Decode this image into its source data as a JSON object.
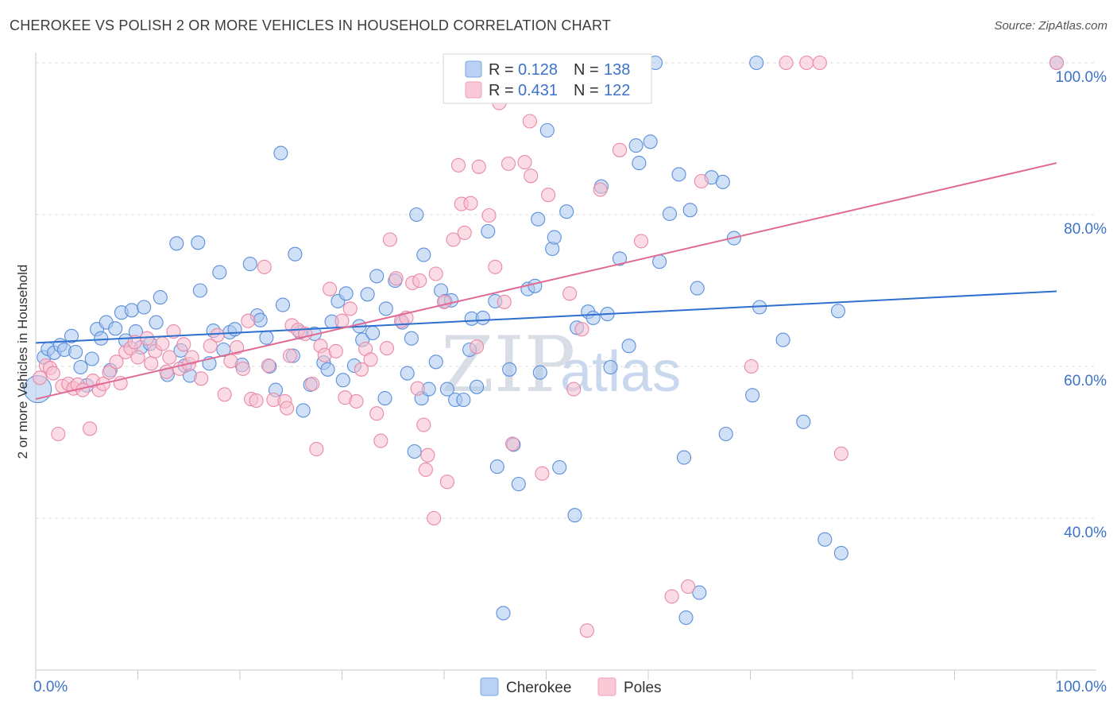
{
  "header": {
    "title": "CHEROKEE VS POLISH 2 OR MORE VEHICLES IN HOUSEHOLD CORRELATION CHART",
    "source": "Source: ZipAtlas.com"
  },
  "watermark": {
    "zip": "ZIP",
    "atlas": "atlas"
  },
  "legend_box": {
    "rows": [
      {
        "r_label": "R =",
        "r_value": "0.128",
        "n_label": "N =",
        "n_value": "138",
        "color": "#7aa6e6"
      },
      {
        "r_label": "R =",
        "r_value": "0.431",
        "n_label": "N =",
        "n_value": "122",
        "color": "#f0a0b8"
      }
    ]
  },
  "colors": {
    "cherokee_fill": "#a9c6ef",
    "cherokee_stroke": "#5b8fd9",
    "cherokee_line": "#2f6fd0",
    "poles_fill": "#f7bfd0",
    "poles_stroke": "#e889a7",
    "poles_line": "#e06a93",
    "axis_label": "#3d72c8",
    "grid": "#dcdcdc"
  },
  "chart_data": {
    "type": "scatter",
    "title": "CHEROKEE VS POLISH 2 OR MORE VEHICLES IN HOUSEHOLD CORRELATION CHART",
    "xlabel": "",
    "ylabel": "2 or more Vehicles in Household",
    "xlim": [
      0,
      100
    ],
    "ylim": [
      20,
      100
    ],
    "x_tick_labels": [
      "0.0%",
      "100.0%"
    ],
    "y_tick_labels": [
      "100.0%",
      "80.0%",
      "60.0%",
      "40.0%"
    ],
    "y_ticks": [
      100,
      80,
      60,
      40
    ],
    "grid": true,
    "legend_position": "bottom",
    "series": [
      {
        "name": "Cherokee",
        "R": 0.128,
        "N": 138,
        "trend": {
          "x": [
            0,
            100
          ],
          "y": [
            63.1,
            69.9
          ]
        },
        "points": [
          [
            0.2,
            57.0
          ],
          [
            0.8,
            61.2
          ],
          [
            1.2,
            62.3
          ],
          [
            1.8,
            61.8
          ],
          [
            2.4,
            62.8
          ],
          [
            2.8,
            62.2
          ],
          [
            3.5,
            64.0
          ],
          [
            3.9,
            61.9
          ],
          [
            4.4,
            59.9
          ],
          [
            5.0,
            57.5
          ],
          [
            5.5,
            61.0
          ],
          [
            6.0,
            64.9
          ],
          [
            6.4,
            63.7
          ],
          [
            6.9,
            65.8
          ],
          [
            7.3,
            59.5
          ],
          [
            7.8,
            65.0
          ],
          [
            8.4,
            67.1
          ],
          [
            8.8,
            63.4
          ],
          [
            9.4,
            67.4
          ],
          [
            9.8,
            64.6
          ],
          [
            10.3,
            62.5
          ],
          [
            10.6,
            67.8
          ],
          [
            11.2,
            63.0
          ],
          [
            11.8,
            65.8
          ],
          [
            12.2,
            69.1
          ],
          [
            12.9,
            58.9
          ],
          [
            13.8,
            76.2
          ],
          [
            14.2,
            62.1
          ],
          [
            14.6,
            60.1
          ],
          [
            15.1,
            58.8
          ],
          [
            15.9,
            76.3
          ],
          [
            16.1,
            70.0
          ],
          [
            17.0,
            60.4
          ],
          [
            17.4,
            64.7
          ],
          [
            18.0,
            72.4
          ],
          [
            18.4,
            62.2
          ],
          [
            19.0,
            64.5
          ],
          [
            19.5,
            64.9
          ],
          [
            20.2,
            60.2
          ],
          [
            21.0,
            73.5
          ],
          [
            21.7,
            66.7
          ],
          [
            22.0,
            66.1
          ],
          [
            22.6,
            63.8
          ],
          [
            22.9,
            60.0
          ],
          [
            23.5,
            56.9
          ],
          [
            24.0,
            88.1
          ],
          [
            24.2,
            68.1
          ],
          [
            25.2,
            61.4
          ],
          [
            25.4,
            74.8
          ],
          [
            25.9,
            64.5
          ],
          [
            26.2,
            54.2
          ],
          [
            26.9,
            57.6
          ],
          [
            27.3,
            64.3
          ],
          [
            28.2,
            60.5
          ],
          [
            28.6,
            59.6
          ],
          [
            29.0,
            65.9
          ],
          [
            29.6,
            68.6
          ],
          [
            30.1,
            58.2
          ],
          [
            30.4,
            69.6
          ],
          [
            31.2,
            60.1
          ],
          [
            31.7,
            65.3
          ],
          [
            32.0,
            63.5
          ],
          [
            32.5,
            69.5
          ],
          [
            33.0,
            64.4
          ],
          [
            33.4,
            71.9
          ],
          [
            34.2,
            55.8
          ],
          [
            34.3,
            67.6
          ],
          [
            35.2,
            71.3
          ],
          [
            35.9,
            65.8
          ],
          [
            36.4,
            59.1
          ],
          [
            36.8,
            63.7
          ],
          [
            37.1,
            48.8
          ],
          [
            37.3,
            80.0
          ],
          [
            37.8,
            55.8
          ],
          [
            38.0,
            74.7
          ],
          [
            38.5,
            57.0
          ],
          [
            39.2,
            60.6
          ],
          [
            39.7,
            70.0
          ],
          [
            40.1,
            68.6
          ],
          [
            40.3,
            57.0
          ],
          [
            40.7,
            68.7
          ],
          [
            41.1,
            55.6
          ],
          [
            41.9,
            55.6
          ],
          [
            42.5,
            62.2
          ],
          [
            42.7,
            66.3
          ],
          [
            43.2,
            57.3
          ],
          [
            43.8,
            66.4
          ],
          [
            44.3,
            77.8
          ],
          [
            45.0,
            68.6
          ],
          [
            45.2,
            46.8
          ],
          [
            45.8,
            27.5
          ],
          [
            46.4,
            59.6
          ],
          [
            46.8,
            49.7
          ],
          [
            47.3,
            44.5
          ],
          [
            48.2,
            70.2
          ],
          [
            48.9,
            70.6
          ],
          [
            49.2,
            79.4
          ],
          [
            49.4,
            59.2
          ],
          [
            50.1,
            91.1
          ],
          [
            50.6,
            75.5
          ],
          [
            50.8,
            77.0
          ],
          [
            51.3,
            46.7
          ],
          [
            52.0,
            80.4
          ],
          [
            52.8,
            40.4
          ],
          [
            53.0,
            65.1
          ],
          [
            54.1,
            67.2
          ],
          [
            54.6,
            66.4
          ],
          [
            55.4,
            83.7
          ],
          [
            56.0,
            66.9
          ],
          [
            56.3,
            59.9
          ],
          [
            57.2,
            74.2
          ],
          [
            58.1,
            62.7
          ],
          [
            58.8,
            89.1
          ],
          [
            59.1,
            86.8
          ],
          [
            59.6,
            100.0
          ],
          [
            60.2,
            89.6
          ],
          [
            60.7,
            100.0
          ],
          [
            61.1,
            73.8
          ],
          [
            62.1,
            80.1
          ],
          [
            63.0,
            85.3
          ],
          [
            63.5,
            48.0
          ],
          [
            63.7,
            26.9
          ],
          [
            64.1,
            80.6
          ],
          [
            64.8,
            70.3
          ],
          [
            65.0,
            30.2
          ],
          [
            66.2,
            84.9
          ],
          [
            67.3,
            84.3
          ],
          [
            67.6,
            51.1
          ],
          [
            68.4,
            76.9
          ],
          [
            70.2,
            56.2
          ],
          [
            70.6,
            100.0
          ],
          [
            70.9,
            67.8
          ],
          [
            73.2,
            63.5
          ],
          [
            75.2,
            52.7
          ],
          [
            77.3,
            37.2
          ],
          [
            78.6,
            67.3
          ],
          [
            78.9,
            35.4
          ],
          [
            100.0,
            100.0
          ]
        ]
      },
      {
        "name": "Poles",
        "R": 0.431,
        "N": 122,
        "trend": {
          "x": [
            0,
            100
          ],
          "y": [
            55.7,
            86.8
          ]
        },
        "points": [
          [
            0.4,
            58.5
          ],
          [
            1.0,
            60.1
          ],
          [
            1.4,
            59.8
          ],
          [
            1.7,
            59.1
          ],
          [
            2.2,
            51.1
          ],
          [
            2.6,
            57.4
          ],
          [
            3.2,
            57.7
          ],
          [
            3.7,
            57.1
          ],
          [
            4.1,
            57.6
          ],
          [
            4.6,
            56.9
          ],
          [
            5.3,
            51.8
          ],
          [
            5.6,
            58.1
          ],
          [
            6.2,
            56.9
          ],
          [
            6.6,
            57.7
          ],
          [
            7.2,
            59.2
          ],
          [
            7.9,
            60.6
          ],
          [
            8.3,
            57.8
          ],
          [
            8.8,
            61.9
          ],
          [
            9.3,
            62.4
          ],
          [
            9.7,
            63.2
          ],
          [
            10.0,
            61.2
          ],
          [
            10.9,
            63.7
          ],
          [
            11.3,
            60.4
          ],
          [
            11.7,
            62.0
          ],
          [
            12.4,
            63.0
          ],
          [
            12.8,
            59.3
          ],
          [
            13.1,
            61.2
          ],
          [
            13.5,
            64.6
          ],
          [
            14.1,
            59.7
          ],
          [
            14.5,
            62.9
          ],
          [
            15.0,
            60.3
          ],
          [
            15.3,
            61.2
          ],
          [
            16.2,
            58.4
          ],
          [
            17.1,
            62.7
          ],
          [
            17.8,
            64.1
          ],
          [
            18.5,
            56.3
          ],
          [
            19.1,
            60.7
          ],
          [
            19.7,
            62.5
          ],
          [
            20.3,
            59.7
          ],
          [
            20.8,
            66.0
          ],
          [
            21.1,
            55.7
          ],
          [
            21.6,
            55.5
          ],
          [
            22.4,
            73.1
          ],
          [
            22.8,
            60.1
          ],
          [
            23.3,
            55.6
          ],
          [
            24.4,
            55.4
          ],
          [
            24.6,
            54.5
          ],
          [
            24.9,
            61.4
          ],
          [
            25.1,
            65.4
          ],
          [
            25.7,
            64.8
          ],
          [
            26.4,
            64.3
          ],
          [
            27.1,
            57.7
          ],
          [
            27.5,
            49.1
          ],
          [
            27.9,
            62.7
          ],
          [
            28.3,
            61.5
          ],
          [
            28.8,
            70.2
          ],
          [
            29.4,
            62.0
          ],
          [
            30.0,
            66.0
          ],
          [
            30.3,
            55.9
          ],
          [
            30.8,
            67.6
          ],
          [
            31.4,
            55.4
          ],
          [
            31.9,
            59.6
          ],
          [
            32.3,
            62.3
          ],
          [
            32.8,
            60.9
          ],
          [
            33.4,
            53.8
          ],
          [
            33.8,
            50.2
          ],
          [
            34.4,
            62.4
          ],
          [
            34.7,
            76.7
          ],
          [
            35.3,
            71.6
          ],
          [
            35.8,
            66.0
          ],
          [
            36.3,
            66.4
          ],
          [
            36.9,
            71.0
          ],
          [
            37.4,
            57.1
          ],
          [
            37.6,
            71.3
          ],
          [
            38.0,
            52.3
          ],
          [
            38.2,
            46.4
          ],
          [
            38.4,
            48.3
          ],
          [
            39.0,
            40.0
          ],
          [
            39.2,
            72.2
          ],
          [
            40.0,
            68.5
          ],
          [
            40.3,
            44.8
          ],
          [
            40.9,
            76.7
          ],
          [
            41.4,
            86.5
          ],
          [
            41.7,
            81.4
          ],
          [
            42.0,
            77.6
          ],
          [
            42.6,
            81.5
          ],
          [
            43.2,
            62.6
          ],
          [
            43.4,
            86.3
          ],
          [
            44.4,
            79.9
          ],
          [
            45.0,
            73.1
          ],
          [
            45.4,
            94.7
          ],
          [
            45.9,
            68.5
          ],
          [
            46.3,
            86.7
          ],
          [
            46.7,
            49.8
          ],
          [
            47.9,
            86.9
          ],
          [
            48.4,
            92.3
          ],
          [
            48.5,
            85.1
          ],
          [
            49.6,
            45.9
          ],
          [
            50.2,
            82.6
          ],
          [
            50.5,
            99.9
          ],
          [
            51.2,
            100.0
          ],
          [
            52.3,
            69.6
          ],
          [
            52.7,
            57.0
          ],
          [
            53.5,
            64.9
          ],
          [
            54.0,
            25.2
          ],
          [
            55.3,
            83.3
          ],
          [
            57.2,
            88.5
          ],
          [
            58.1,
            100.0
          ],
          [
            59.3,
            76.5
          ],
          [
            62.3,
            29.7
          ],
          [
            63.9,
            31.0
          ],
          [
            65.2,
            84.4
          ],
          [
            70.1,
            60.0
          ],
          [
            73.5,
            100.0
          ],
          [
            75.5,
            100.0
          ],
          [
            76.8,
            100.0
          ],
          [
            78.9,
            48.5
          ],
          [
            100.0,
            100.0
          ]
        ]
      }
    ]
  },
  "bottom_legend": {
    "items": [
      {
        "label": "Cherokee"
      },
      {
        "label": "Poles"
      }
    ]
  }
}
